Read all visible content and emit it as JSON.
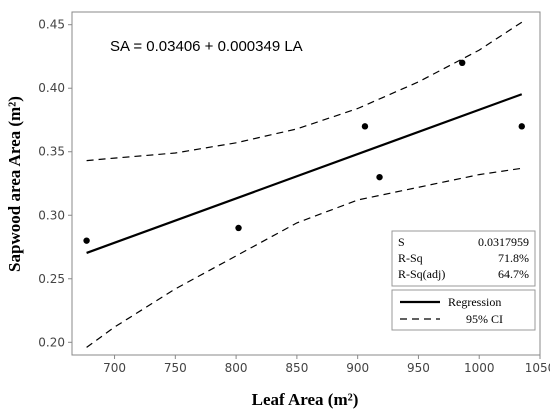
{
  "chart_data": {
    "type": "scatter",
    "xlabel": "Leaf Area (m²)",
    "ylabel": "Sapwood area Area (m²)",
    "annotation": "SA = 0.03406 + 0.000349 LA",
    "xlim": [
      665,
      1050
    ],
    "ylim": [
      0.19,
      0.46
    ],
    "x_ticks": [
      "700",
      "750",
      "800",
      "850",
      "900",
      "950",
      "1000",
      "1050"
    ],
    "y_ticks": [
      "0.20",
      "0.25",
      "0.30",
      "0.35",
      "0.40",
      "0.45"
    ],
    "x_tick_values": [
      700,
      750,
      800,
      850,
      900,
      950,
      1000,
      1050
    ],
    "y_tick_values": [
      0.2,
      0.25,
      0.3,
      0.35,
      0.4,
      0.45
    ],
    "points": [
      {
        "x": 677,
        "y": 0.28
      },
      {
        "x": 802,
        "y": 0.29
      },
      {
        "x": 906,
        "y": 0.37
      },
      {
        "x": 918,
        "y": 0.33
      },
      {
        "x": 986,
        "y": 0.42
      },
      {
        "x": 1035,
        "y": 0.37
      }
    ],
    "regression": {
      "intercept": 0.03406,
      "slope": 0.000349,
      "x_range": [
        677,
        1035
      ]
    },
    "ci_upper": [
      {
        "x": 677,
        "y": 0.343
      },
      {
        "x": 700,
        "y": 0.345
      },
      {
        "x": 750,
        "y": 0.349
      },
      {
        "x": 800,
        "y": 0.357
      },
      {
        "x": 850,
        "y": 0.368
      },
      {
        "x": 900,
        "y": 0.384
      },
      {
        "x": 950,
        "y": 0.405
      },
      {
        "x": 1000,
        "y": 0.43
      },
      {
        "x": 1035,
        "y": 0.452
      }
    ],
    "ci_lower": [
      {
        "x": 677,
        "y": 0.196
      },
      {
        "x": 700,
        "y": 0.212
      },
      {
        "x": 750,
        "y": 0.242
      },
      {
        "x": 800,
        "y": 0.268
      },
      {
        "x": 850,
        "y": 0.294
      },
      {
        "x": 900,
        "y": 0.312
      },
      {
        "x": 950,
        "y": 0.322
      },
      {
        "x": 1000,
        "y": 0.332
      },
      {
        "x": 1035,
        "y": 0.337
      }
    ],
    "stats": [
      {
        "label": "S",
        "value": "0.0317959"
      },
      {
        "label": "R-Sq",
        "value": "71.8%"
      },
      {
        "label": "R-Sq(adj)",
        "value": "64.7%"
      }
    ],
    "legend": [
      {
        "name": "Regression",
        "style": "solid"
      },
      {
        "name": "95% CI",
        "style": "dashed"
      }
    ],
    "grid": false,
    "legend_position": "bottom-right"
  }
}
